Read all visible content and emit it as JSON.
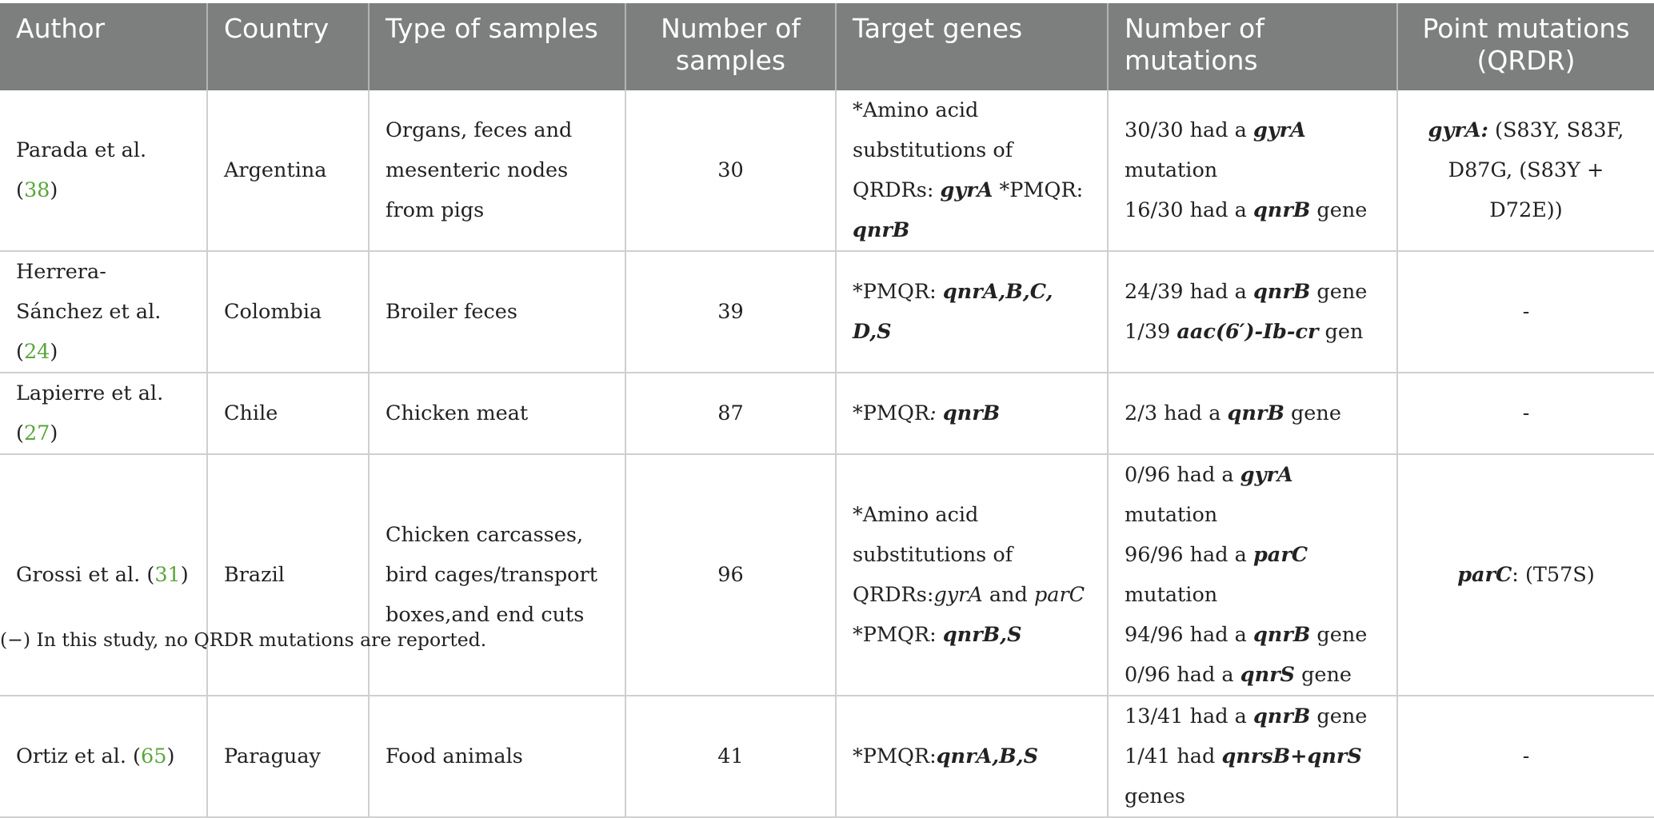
{
  "headers": [
    "Author",
    "Country",
    "Type of samples",
    "Number of\nsamples",
    "Target genes",
    "Number of\nmutations",
    "Point mutations\n(QRDR)"
  ],
  "rows": [
    {
      "author": "Parada et al. (",
      "ref": "38",
      "author_end": ")",
      "country": "Argentina",
      "samples_type": "Organs, feces and mesenteric nodes from pigs",
      "n_samples": "30",
      "genes": {
        "a": "*Amino acid substitutions of QRDRs: ",
        "b": "gyrA",
        "c": " *PMQR: ",
        "d": "qnrB"
      },
      "mutations": [
        {
          "a": "30/30 had a ",
          "b": "gyrA",
          "c": " mutation"
        },
        {
          "a": "16/30 had a ",
          "b": "qnrB",
          "c": " gene"
        }
      ],
      "point": {
        "a": "gyrA:",
        "b": " (S83Y, S83F, D87G, (S83Y + D72E))"
      }
    },
    {
      "author": "Herrera-Sánchez et al. (",
      "ref": "24",
      "author_end": ")",
      "country": "Colombia",
      "samples_type": "Broiler feces",
      "n_samples": "39",
      "genes": {
        "a": "*PMQR: ",
        "b": "qnrA,B,C, D,S"
      },
      "mutations": [
        {
          "a": "24/39 had a ",
          "b": "qnrB",
          "c": " gene"
        },
        {
          "a": "1/39 ",
          "b": "aac(6′)-Ib-cr",
          "c": " gen"
        }
      ],
      "point": "-"
    },
    {
      "author": "Lapierre et al. (",
      "ref": "27",
      "author_end": ")",
      "country": "Chile",
      "samples_type": "Chicken meat",
      "n_samples": "87",
      "genes": {
        "a": "*PMQR",
        "b": ": ",
        "c": "qnrB"
      },
      "mutations": [
        {
          "a": "2/3 had a ",
          "b": "qnrB",
          "c": " gene"
        }
      ],
      "point": "-"
    },
    {
      "author": "Grossi et al. (",
      "ref": "31",
      "author_end": ")",
      "country": "Brazil",
      "samples_type": "Chicken carcasses, bird cages/transport boxes,and end cuts",
      "n_samples": "96",
      "genes": {
        "a": "*Amino acid substitutions of QRDRs:",
        "b": "gyrA",
        "c": " and ",
        "d": "parC",
        "e": "*PMQR: ",
        "f": "qnrB,S"
      },
      "mutations": {
        "m1a": "0/96 had a ",
        "m1b": "gyrA",
        "m1c": " mutation",
        "m2a": "96/96 had a ",
        "m2b": "parC",
        "m2c": " mutation",
        "m3a": "94/96 had a ",
        "m3b": "qnrB",
        "m3c": " gene 0/96 had a ",
        "m3d": "qnrS",
        "m3e": " gene"
      },
      "point": {
        "a": "parC",
        "b": ": (T57S)"
      }
    },
    {
      "author": "Ortiz et al. (",
      "ref": "65",
      "author_end": ")",
      "country": "Paraguay",
      "samples_type": "Food animals",
      "n_samples": "41",
      "genes": {
        "a": "*PMQR:",
        "b": "qnrA,B,S"
      },
      "mutations": {
        "a": "13/41 had a ",
        "b": "qnrB",
        "c": " gene 1/41 had ",
        "d": "qnrsB+qnrS",
        "e": " genes"
      },
      "point": "-"
    }
  ],
  "footnote": "(−) In this study, no QRDR mutations are reported."
}
